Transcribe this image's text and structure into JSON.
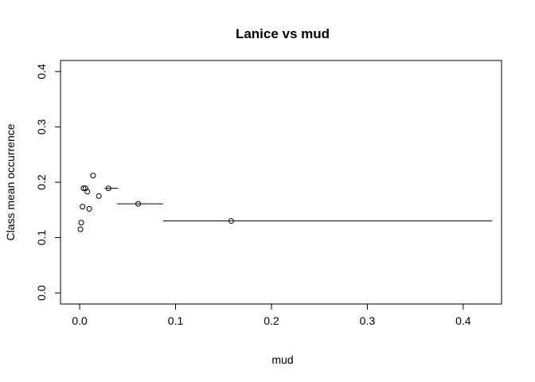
{
  "chart_data": {
    "type": "scatter",
    "title": "Lanice vs mud",
    "xlabel": "mud",
    "ylabel": "Class mean occurrence",
    "xlim": [
      -0.02,
      0.44
    ],
    "ylim": [
      -0.02,
      0.42
    ],
    "xticks": [
      0.0,
      0.1,
      0.2,
      0.3,
      0.4
    ],
    "xtick_labels": [
      "0.0",
      "0.1",
      "0.2",
      "0.3",
      "0.4"
    ],
    "yticks": [
      0.0,
      0.1,
      0.2,
      0.3,
      0.4
    ],
    "ytick_labels": [
      "0.0",
      "0.1",
      "0.2",
      "0.3",
      "0.4"
    ],
    "grid": false,
    "legend": "none",
    "colors": {
      "points": "#000000",
      "axes": "#000000",
      "background": "#ffffff"
    },
    "points": [
      {
        "x": 0.0008,
        "y": 0.115
      },
      {
        "x": 0.0016,
        "y": 0.127
      },
      {
        "x": 0.003,
        "y": 0.156
      },
      {
        "x": 0.004,
        "y": 0.189
      },
      {
        "x": 0.006,
        "y": 0.189
      },
      {
        "x": 0.008,
        "y": 0.183
      },
      {
        "x": 0.01,
        "y": 0.152
      },
      {
        "x": 0.014,
        "y": 0.212
      },
      {
        "x": 0.02,
        "y": 0.175
      },
      {
        "x": 0.03,
        "y": 0.189
      },
      {
        "x": 0.061,
        "y": 0.161
      },
      {
        "x": 0.158,
        "y": 0.13
      }
    ],
    "ranges": [
      {
        "x0": 0.026,
        "x1": 0.04,
        "y": 0.189
      },
      {
        "x0": 0.039,
        "x1": 0.087,
        "y": 0.161
      },
      {
        "x0": 0.087,
        "x1": 0.43,
        "y": 0.13
      }
    ]
  }
}
